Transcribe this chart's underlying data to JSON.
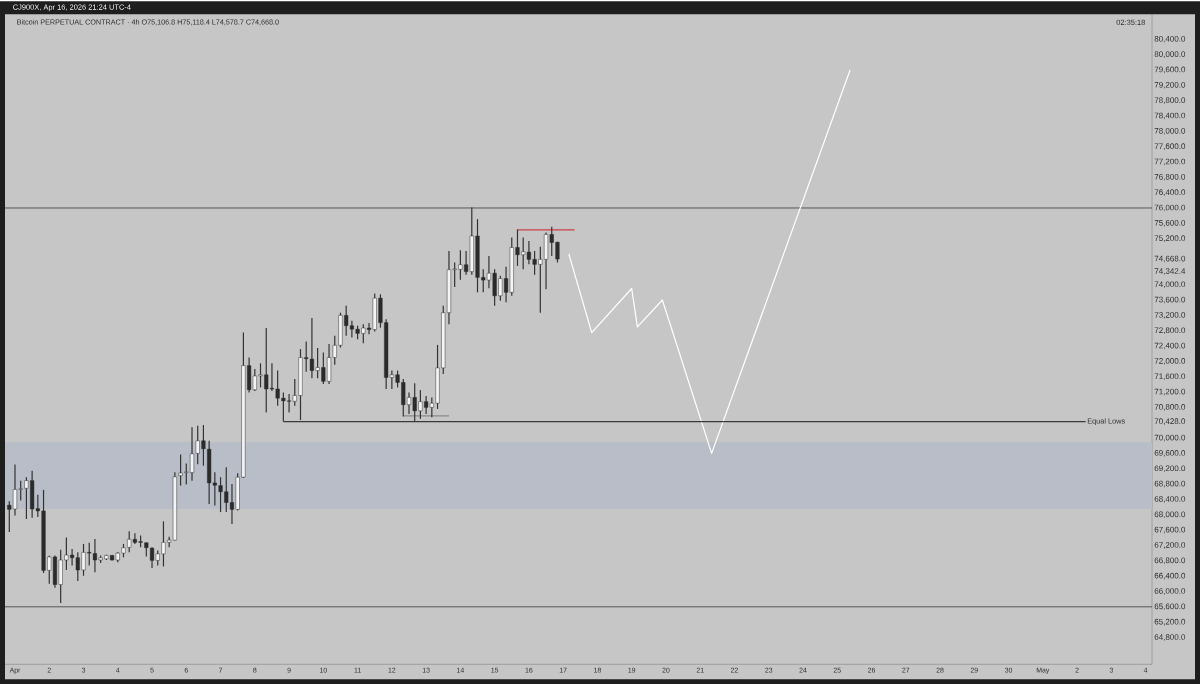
{
  "chart_data": {
    "type": "candlestick",
    "title": "Bitcoin PERPETUAL CONTRACT · 4h  O75,106.8  H75,118.4  L74,578.7  C74,668.0",
    "annotations": [
      "CJ900X, Apr 16, 2026 21:24 UTC-4",
      "02:35:18"
    ],
    "x": [
      "2026-03-31T20:00",
      "2026-04-01T00:00",
      "2026-04-01T04:00",
      "2026-04-01T08:00",
      "2026-04-01T12:00",
      "2026-04-01T16:00",
      "2026-04-01T20:00",
      "2026-04-02T00:00",
      "2026-04-02T04:00",
      "2026-04-02T08:00",
      "2026-04-02T12:00",
      "2026-04-02T16:00",
      "2026-04-02T20:00",
      "2026-04-03T00:00",
      "2026-04-03T04:00",
      "2026-04-03T08:00",
      "2026-04-03T12:00",
      "2026-04-03T16:00",
      "2026-04-03T20:00",
      "2026-04-04T00:00",
      "2026-04-04T04:00",
      "2026-04-04T08:00",
      "2026-04-04T12:00",
      "2026-04-04T16:00",
      "2026-04-04T20:00",
      "2026-04-05T00:00",
      "2026-04-05T04:00",
      "2026-04-05T08:00",
      "2026-04-05T12:00",
      "2026-04-05T16:00",
      "2026-04-05T20:00",
      "2026-04-06T00:00",
      "2026-04-06T04:00",
      "2026-04-06T08:00",
      "2026-04-06T12:00",
      "2026-04-06T16:00",
      "2026-04-06T20:00",
      "2026-04-07T00:00",
      "2026-04-07T04:00",
      "2026-04-07T08:00",
      "2026-04-07T12:00",
      "2026-04-07T16:00",
      "2026-04-07T20:00",
      "2026-04-08T00:00",
      "2026-04-08T04:00",
      "2026-04-08T08:00",
      "2026-04-08T12:00",
      "2026-04-08T16:00",
      "2026-04-08T20:00",
      "2026-04-09T00:00",
      "2026-04-09T04:00",
      "2026-04-09T08:00",
      "2026-04-09T12:00",
      "2026-04-09T16:00",
      "2026-04-09T20:00",
      "2026-04-10T00:00",
      "2026-04-10T04:00",
      "2026-04-10T08:00",
      "2026-04-10T12:00",
      "2026-04-10T16:00",
      "2026-04-10T20:00",
      "2026-04-11T00:00",
      "2026-04-11T04:00",
      "2026-04-11T08:00",
      "2026-04-11T12:00",
      "2026-04-11T16:00",
      "2026-04-11T20:00",
      "2026-04-12T00:00",
      "2026-04-12T04:00",
      "2026-04-12T08:00",
      "2026-04-12T12:00",
      "2026-04-12T16:00",
      "2026-04-12T20:00",
      "2026-04-13T00:00",
      "2026-04-13T04:00",
      "2026-04-13T08:00",
      "2026-04-13T12:00",
      "2026-04-13T16:00",
      "2026-04-13T20:00",
      "2026-04-14T00:00",
      "2026-04-14T04:00",
      "2026-04-14T08:00",
      "2026-04-14T12:00",
      "2026-04-14T16:00",
      "2026-04-14T20:00",
      "2026-04-15T00:00",
      "2026-04-15T04:00",
      "2026-04-15T08:00",
      "2026-04-15T12:00",
      "2026-04-15T16:00",
      "2026-04-15T20:00",
      "2026-04-16T00:00",
      "2026-04-16T04:00",
      "2026-04-16T08:00",
      "2026-04-16T12:00",
      "2026-04-16T16:00",
      "2026-04-16T20:00"
    ],
    "ohlc": [
      [
        68250,
        68350,
        67550,
        68140
      ],
      [
        68150,
        69310,
        67980,
        68660
      ],
      [
        68660,
        68890,
        68370,
        68680
      ],
      [
        68690,
        68980,
        67890,
        68890
      ],
      [
        68890,
        69150,
        67920,
        68150
      ],
      [
        68160,
        68520,
        67940,
        68100
      ],
      [
        68100,
        68650,
        66480,
        66550
      ],
      [
        66550,
        66930,
        66200,
        66900
      ],
      [
        66900,
        66940,
        66100,
        66180
      ],
      [
        66180,
        67090,
        65700,
        66820
      ],
      [
        66820,
        67410,
        66560,
        66950
      ],
      [
        66950,
        67110,
        66680,
        66880
      ],
      [
        66880,
        67020,
        66270,
        66560
      ],
      [
        66560,
        67240,
        66410,
        67020
      ],
      [
        67020,
        67270,
        66680,
        67000
      ],
      [
        66990,
        67370,
        66500,
        66820
      ],
      [
        66820,
        66940,
        66740,
        66880
      ],
      [
        66850,
        66960,
        66820,
        66940
      ],
      [
        66940,
        66950,
        66810,
        66820
      ],
      [
        66820,
        67020,
        66760,
        67000
      ],
      [
        67000,
        67240,
        66890,
        67140
      ],
      [
        67150,
        67570,
        67020,
        67360
      ],
      [
        67360,
        67520,
        67240,
        67280
      ],
      [
        67300,
        67460,
        67150,
        67280
      ],
      [
        67270,
        67280,
        66910,
        67140
      ],
      [
        67130,
        67150,
        66610,
        66810
      ],
      [
        66810,
        67070,
        66680,
        66980
      ],
      [
        66980,
        67830,
        66650,
        67280
      ],
      [
        67280,
        67430,
        67150,
        67340
      ],
      [
        67340,
        69110,
        67330,
        68990
      ],
      [
        69020,
        69570,
        68760,
        69090
      ],
      [
        69100,
        69340,
        68790,
        69120
      ],
      [
        69100,
        70280,
        68890,
        69590
      ],
      [
        69600,
        70320,
        69320,
        69930
      ],
      [
        69930,
        70340,
        69280,
        69720
      ],
      [
        69710,
        69930,
        68280,
        68830
      ],
      [
        68830,
        69110,
        68240,
        68770
      ],
      [
        68760,
        68980,
        68070,
        68600
      ],
      [
        68600,
        69240,
        68070,
        68320
      ],
      [
        68320,
        68800,
        67760,
        68140
      ],
      [
        68140,
        69080,
        68110,
        68980
      ],
      [
        68980,
        72750,
        68960,
        71890
      ],
      [
        71890,
        72100,
        71190,
        71260
      ],
      [
        71260,
        71800,
        71230,
        71620
      ],
      [
        71620,
        71950,
        71320,
        71650
      ],
      [
        71650,
        72870,
        70670,
        71280
      ],
      [
        71300,
        71950,
        71230,
        71280
      ],
      [
        71280,
        71760,
        70840,
        71040
      ],
      [
        71040,
        71190,
        70430,
        70970
      ],
      [
        70970,
        71150,
        70670,
        70960
      ],
      [
        70960,
        71540,
        70840,
        71110
      ],
      [
        71110,
        72320,
        70470,
        72100
      ],
      [
        72100,
        72520,
        71730,
        72070
      ],
      [
        72060,
        73130,
        71560,
        71760
      ],
      [
        71760,
        72350,
        71560,
        71840
      ],
      [
        71840,
        72230,
        71410,
        71480
      ],
      [
        71480,
        72450,
        71410,
        72100
      ],
      [
        72100,
        72670,
        71910,
        72420
      ],
      [
        72420,
        73270,
        72360,
        73200
      ],
      [
        73200,
        73450,
        72670,
        72930
      ],
      [
        72930,
        73060,
        72620,
        72840
      ],
      [
        72840,
        72930,
        72580,
        72730
      ],
      [
        72730,
        72970,
        72470,
        72870
      ],
      [
        72870,
        73000,
        72710,
        72830
      ],
      [
        72830,
        73770,
        72780,
        73650
      ],
      [
        73650,
        73750,
        72880,
        73010
      ],
      [
        73010,
        73100,
        71280,
        71580
      ],
      [
        71580,
        71760,
        71280,
        71650
      ],
      [
        71650,
        71760,
        71320,
        71450
      ],
      [
        71450,
        71540,
        70560,
        70870
      ],
      [
        70870,
        71190,
        70630,
        71060
      ],
      [
        71060,
        71430,
        70440,
        70710
      ],
      [
        70710,
        71250,
        70500,
        70950
      ],
      [
        70950,
        71100,
        70630,
        70800
      ],
      [
        70800,
        71060,
        70540,
        70910
      ],
      [
        70910,
        72430,
        70760,
        71830
      ],
      [
        71830,
        73450,
        71670,
        73270
      ],
      [
        73270,
        74880,
        72970,
        74390
      ],
      [
        74390,
        74580,
        73940,
        74410
      ],
      [
        74400,
        74900,
        74130,
        74520
      ],
      [
        74520,
        74880,
        74260,
        74340
      ],
      [
        74340,
        76010,
        74260,
        75270
      ],
      [
        75270,
        75710,
        73800,
        74190
      ],
      [
        74190,
        74400,
        73800,
        74120
      ],
      [
        74120,
        74750,
        73910,
        74300
      ],
      [
        74300,
        74400,
        73450,
        73710
      ],
      [
        73710,
        74230,
        73580,
        74160
      ],
      [
        74160,
        74470,
        73540,
        73800
      ],
      [
        73800,
        75230,
        73710,
        74970
      ],
      [
        74970,
        75440,
        74490,
        74780
      ],
      [
        74780,
        75230,
        74400,
        74860
      ],
      [
        74850,
        75140,
        74530,
        74660
      ],
      [
        74660,
        74880,
        74260,
        74530
      ],
      [
        74530,
        74990,
        73270,
        74660
      ],
      [
        74660,
        75360,
        73880,
        75310
      ],
      [
        75310,
        75510,
        74750,
        75100
      ],
      [
        75106.8,
        75118.4,
        74578.7,
        74668.0
      ]
    ],
    "series": [
      {
        "type": "line",
        "color": "#ffffff",
        "x": [
          "2026-04-17T04:00",
          "2026-04-17T20:00",
          "2026-04-19T00:00",
          "2026-04-19T04:00",
          "2026-04-19T21:30",
          "2026-04-21T08:00",
          "2026-04-25T09:00"
        ],
        "values": [
          74800,
          72750,
          73900,
          72900,
          73600,
          69600,
          79600
        ]
      },
      {
        "type": "line",
        "color": "#c9404a",
        "x": [
          "2026-04-15T16:00",
          "2026-04-17T08:00"
        ],
        "values": [
          75430,
          75430
        ]
      },
      {
        "type": "line",
        "name": "Equal Lows",
        "color": "#3a3a3a",
        "x": [
          "2026-04-08T20:00",
          "2026-05-02T06:00"
        ],
        "values": [
          70428,
          70428
        ]
      },
      {
        "type": "line",
        "color": "#8a8a8a",
        "x": [
          "2026-04-12T08:00",
          "2026-04-13T16:00"
        ],
        "values": [
          70580,
          70580
        ]
      }
    ],
    "ref_lines": [
      {
        "axis": "y",
        "value": 76000,
        "color": "#3a3a3a"
      },
      {
        "axis": "y",
        "value": 65600,
        "color": "#3a3a3a"
      }
    ],
    "bands": [
      {
        "axis": "y",
        "from": 68150,
        "to": 69900,
        "color": "#b8bdc8"
      }
    ],
    "xlim": [
      "2026-03-31T17:00",
      "2026-05-04T04:30"
    ],
    "xticks": [
      {
        "value": "2026-04-01",
        "label": "Apr"
      },
      {
        "value": "2026-04-02",
        "label": "2"
      },
      {
        "value": "2026-04-03",
        "label": "3"
      },
      {
        "value": "2026-04-04",
        "label": "4"
      },
      {
        "value": "2026-04-05",
        "label": "5"
      },
      {
        "value": "2026-04-06",
        "label": "6"
      },
      {
        "value": "2026-04-07",
        "label": "7"
      },
      {
        "value": "2026-04-08",
        "label": "8"
      },
      {
        "value": "2026-04-09",
        "label": "9"
      },
      {
        "value": "2026-04-10",
        "label": "10"
      },
      {
        "value": "2026-04-11",
        "label": "11"
      },
      {
        "value": "2026-04-12",
        "label": "12"
      },
      {
        "value": "2026-04-13",
        "label": "13"
      },
      {
        "value": "2026-04-14",
        "label": "14"
      },
      {
        "value": "2026-04-15",
        "label": "15"
      },
      {
        "value": "2026-04-16",
        "label": "16"
      },
      {
        "value": "2026-04-17",
        "label": "17"
      },
      {
        "value": "2026-04-18",
        "label": "18"
      },
      {
        "value": "2026-04-19",
        "label": "19"
      },
      {
        "value": "2026-04-20",
        "label": "20"
      },
      {
        "value": "2026-04-21",
        "label": "21"
      },
      {
        "value": "2026-04-22",
        "label": "22"
      },
      {
        "value": "2026-04-23",
        "label": "23"
      },
      {
        "value": "2026-04-24",
        "label": "24"
      },
      {
        "value": "2026-04-25",
        "label": "25"
      },
      {
        "value": "2026-04-26",
        "label": "26"
      },
      {
        "value": "2026-04-27",
        "label": "27"
      },
      {
        "value": "2026-04-28",
        "label": "28"
      },
      {
        "value": "2026-04-29",
        "label": "29"
      },
      {
        "value": "2026-04-30",
        "label": "30"
      },
      {
        "value": "2026-05-01",
        "label": "May"
      },
      {
        "value": "2026-05-02",
        "label": "2"
      },
      {
        "value": "2026-05-03",
        "label": "3"
      },
      {
        "value": "2026-05-04",
        "label": "4"
      }
    ],
    "ylim": [
      64100,
      81050
    ],
    "yticks": [
      {
        "value": 64800,
        "label": "64,800.0"
      },
      {
        "value": 65200,
        "label": "65,200.0"
      },
      {
        "value": 65600,
        "label": "65,600.0"
      },
      {
        "value": 66000,
        "label": "66,000.0"
      },
      {
        "value": 66400,
        "label": "66,400.0"
      },
      {
        "value": 66800,
        "label": "66,800.0"
      },
      {
        "value": 67200,
        "label": "67,200.0"
      },
      {
        "value": 67600,
        "label": "67,600.0"
      },
      {
        "value": 68000,
        "label": "68,000.0"
      },
      {
        "value": 68400,
        "label": "68,400.0"
      },
      {
        "value": 68800,
        "label": "68,800.0"
      },
      {
        "value": 69200,
        "label": "69,200.0"
      },
      {
        "value": 69600,
        "label": "69,600.0"
      },
      {
        "value": 70000,
        "label": "70,000.0"
      },
      {
        "value": 70428,
        "label": "70,428.0"
      },
      {
        "value": 70800,
        "label": "70,800.0"
      },
      {
        "value": 71200,
        "label": "71,200.0"
      },
      {
        "value": 71600,
        "label": "71,600.0"
      },
      {
        "value": 72000,
        "label": "72,000.0"
      },
      {
        "value": 72400,
        "label": "72,400.0"
      },
      {
        "value": 72800,
        "label": "72,800.0"
      },
      {
        "value": 73200,
        "label": "73,200.0"
      },
      {
        "value": 73600,
        "label": "73,600.0"
      },
      {
        "value": 74000,
        "label": "74,000.0"
      },
      {
        "value": 74342.4,
        "label": "74,342.4"
      },
      {
        "value": 74668,
        "label": "74,668.0"
      },
      {
        "value": 75200,
        "label": "75,200.0"
      },
      {
        "value": 75600,
        "label": "75,600.0"
      },
      {
        "value": 76000,
        "label": "76,000.0"
      },
      {
        "value": 76400,
        "label": "76,400.0"
      },
      {
        "value": 76800,
        "label": "76,800.0"
      },
      {
        "value": 77200,
        "label": "77,200.0"
      },
      {
        "value": 77600,
        "label": "77,600.0"
      },
      {
        "value": 78000,
        "label": "78,000.0"
      },
      {
        "value": 78400,
        "label": "78,400.0"
      },
      {
        "value": 78800,
        "label": "78,800.0"
      },
      {
        "value": 79200,
        "label": "79,200.0"
      },
      {
        "value": 79600,
        "label": "79,600.0"
      },
      {
        "value": 80000,
        "label": "80,000.0"
      },
      {
        "value": 80400,
        "label": "80,400.0"
      }
    ]
  }
}
